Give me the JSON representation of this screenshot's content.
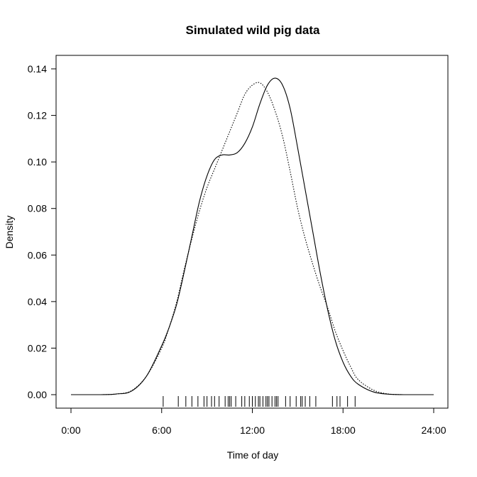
{
  "chart_data": {
    "type": "line",
    "title": "Simulated wild pig data",
    "xlabel": "Time of day",
    "ylabel": "Density",
    "xlim": [
      0,
      24
    ],
    "ylim": [
      0,
      0.14
    ],
    "x_ticks": [
      0,
      6,
      12,
      18,
      24
    ],
    "x_tick_labels": [
      "0:00",
      "6:00",
      "12:00",
      "18:00",
      "24:00"
    ],
    "y_ticks": [
      0,
      0.02,
      0.04,
      0.06,
      0.08,
      0.1,
      0.12,
      0.14
    ],
    "y_tick_labels": [
      "0.00",
      "0.02",
      "0.04",
      "0.06",
      "0.08",
      "0.10",
      "0.12",
      "0.14"
    ],
    "grid": false,
    "legend": "none",
    "series": [
      {
        "line_style": "solid",
        "x": [
          0,
          1,
          2,
          3,
          4,
          5,
          6,
          6.5,
          7,
          7.5,
          8,
          8.5,
          9,
          9.5,
          10,
          10.5,
          11,
          11.5,
          12,
          12.5,
          13,
          13.5,
          14,
          14.5,
          15,
          15.5,
          16,
          16.5,
          17,
          17.5,
          18,
          18.5,
          19,
          20,
          21,
          22,
          23,
          24
        ],
        "y": [
          0,
          0,
          0,
          0.0003,
          0.0015,
          0.008,
          0.021,
          0.029,
          0.039,
          0.053,
          0.068,
          0.083,
          0.094,
          0.101,
          0.103,
          0.103,
          0.104,
          0.108,
          0.115,
          0.125,
          0.133,
          0.136,
          0.133,
          0.123,
          0.106,
          0.088,
          0.07,
          0.052,
          0.036,
          0.023,
          0.014,
          0.008,
          0.0045,
          0.0012,
          0.0002,
          0,
          0,
          0
        ]
      },
      {
        "line_style": "dotted",
        "x": [
          0,
          1,
          2,
          3,
          4,
          5,
          6,
          6.5,
          7,
          7.5,
          8,
          8.5,
          9,
          9.5,
          10,
          10.5,
          11,
          11.5,
          12,
          12.5,
          13,
          13.5,
          14,
          14.5,
          15,
          15.5,
          16,
          16.5,
          17,
          17.5,
          18,
          18.5,
          19,
          20,
          21,
          22,
          23,
          24
        ],
        "y": [
          0,
          0,
          0,
          0.0003,
          0.0017,
          0.008,
          0.02,
          0.029,
          0.04,
          0.054,
          0.067,
          0.079,
          0.089,
          0.097,
          0.105,
          0.113,
          0.121,
          0.129,
          0.133,
          0.134,
          0.13,
          0.122,
          0.111,
          0.096,
          0.08,
          0.067,
          0.056,
          0.046,
          0.037,
          0.027,
          0.019,
          0.012,
          0.0065,
          0.002,
          0.0003,
          0,
          0,
          0
        ]
      }
    ],
    "rug": [
      6.1,
      7.1,
      7.6,
      8.0,
      8.4,
      8.8,
      9.0,
      9.3,
      9.5,
      9.8,
      10.2,
      10.4,
      10.5,
      10.6,
      10.9,
      11.3,
      11.5,
      11.8,
      12.0,
      12.2,
      12.4,
      12.5,
      12.7,
      12.9,
      13.0,
      13.1,
      13.3,
      13.5,
      13.6,
      13.7,
      14.2,
      14.5,
      14.9,
      15.2,
      15.3,
      15.5,
      15.8,
      16.2,
      17.3,
      17.6,
      17.8,
      18.3,
      18.8
    ]
  }
}
